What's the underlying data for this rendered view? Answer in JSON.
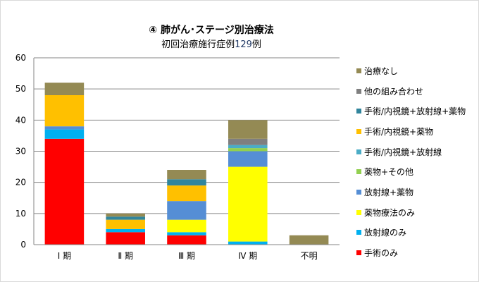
{
  "chart_data": {
    "type": "bar",
    "stacked": true,
    "title": "④ 肺がん･ステージ別治療法",
    "subtitle_prefix": "初回治療施行症例",
    "subtitle_count": "129",
    "subtitle_suffix": "例",
    "xlabel": "",
    "ylabel": "",
    "ylim": [
      0,
      60
    ],
    "yticks": [
      0,
      10,
      20,
      30,
      40,
      50,
      60
    ],
    "grid": true,
    "legend_position": "right",
    "categories": [
      "Ⅰ 期",
      "Ⅱ 期",
      "Ⅲ 期",
      "Ⅳ 期",
      "不明"
    ],
    "series": [
      {
        "name": "手術のみ",
        "color": "#FF0000",
        "values": [
          34,
          4,
          3,
          0,
          0
        ]
      },
      {
        "name": "放射線のみ",
        "color": "#00B0F0",
        "values": [
          3,
          1,
          1,
          1,
          0
        ]
      },
      {
        "name": "薬物療法のみ",
        "color": "#FFFF00",
        "values": [
          0,
          0,
          4,
          24,
          0
        ]
      },
      {
        "name": "放射線+薬物",
        "color": "#558ED5",
        "values": [
          1,
          0,
          6,
          5,
          0
        ]
      },
      {
        "name": "薬物+その他",
        "color": "#92D050",
        "values": [
          0,
          0,
          0,
          1,
          0
        ]
      },
      {
        "name": "手術/内視鏡+放射線",
        "color": "#4BACC6",
        "values": [
          0,
          0,
          0,
          1,
          0
        ]
      },
      {
        "name": "手術/内視鏡+薬物",
        "color": "#FFC000",
        "values": [
          10,
          3,
          5,
          0,
          0
        ]
      },
      {
        "name": "手術/内視鏡+放射線+薬物",
        "color": "#31859C",
        "values": [
          0,
          1,
          2,
          0,
          0
        ]
      },
      {
        "name": "他の組み合わせ",
        "color": "#7F7F7F",
        "values": [
          0,
          0,
          0,
          2,
          0
        ]
      },
      {
        "name": "治療なし",
        "color": "#948A54",
        "values": [
          4,
          1,
          3,
          6,
          3
        ]
      }
    ]
  }
}
